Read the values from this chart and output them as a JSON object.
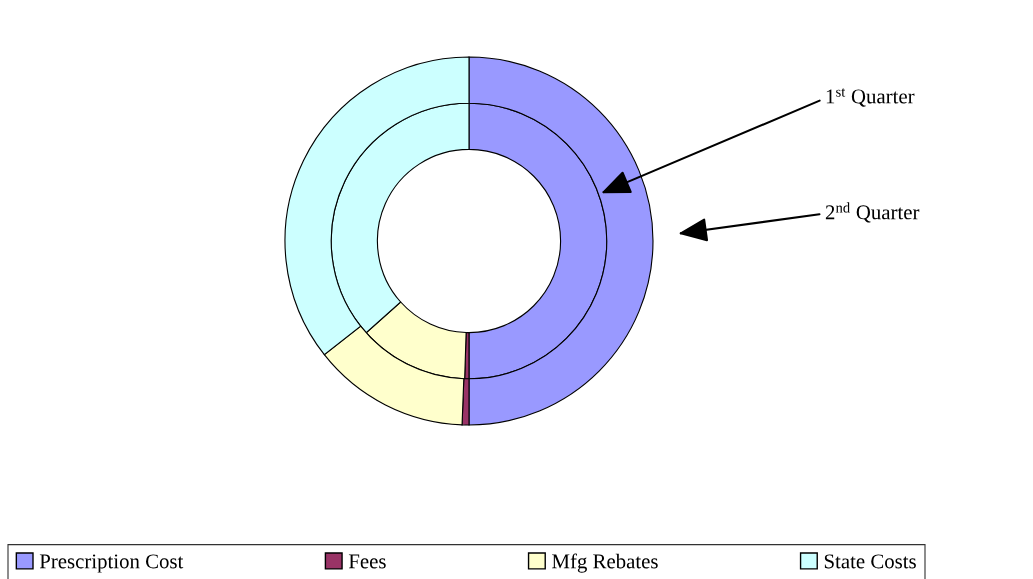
{
  "chart_data": {
    "type": "donut",
    "categories": [
      "Prescription Cost",
      "Fees",
      "Mfg Rebates",
      "State Costs"
    ],
    "colors": [
      "#9999ff",
      "#993366",
      "#ffffcc",
      "#ccffff"
    ],
    "series": [
      {
        "name": "1$^{st}$ Quarter",
        "values": [
          50,
          0.5,
          12.9,
          36.6
        ]
      },
      {
        "name": "2$^{nd}$ Quarter",
        "values": [
          50,
          0.6,
          13.8,
          35.6
        ]
      }
    ],
    "legend": "bottom"
  }
}
